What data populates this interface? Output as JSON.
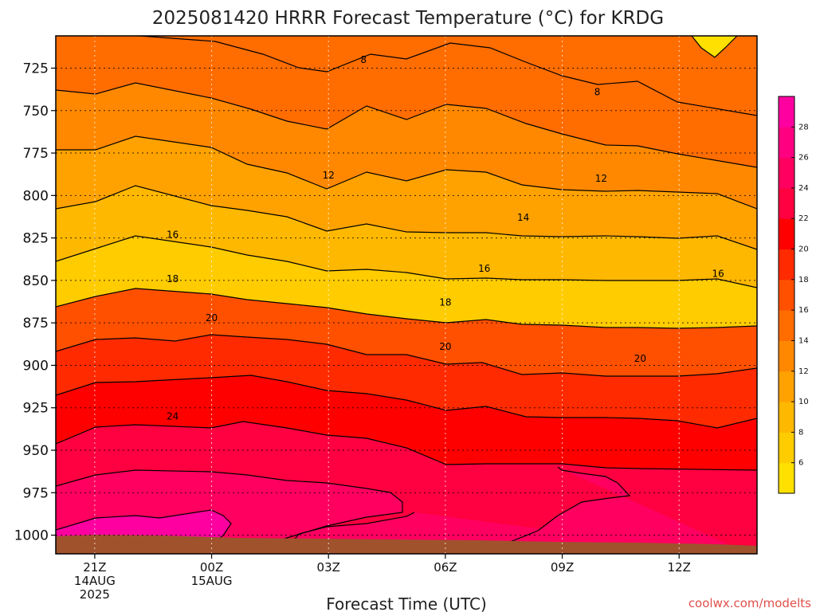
{
  "chart_data": {
    "type": "heatmap",
    "title": "2025081420 HRRR Forecast Temperature (°C) for KRDG",
    "xlabel": "Forecast Time (UTC)",
    "ylabel": "",
    "y_ticks": [
      "725",
      "750",
      "775",
      "800",
      "825",
      "850",
      "875",
      "900",
      "925",
      "950",
      "975",
      "1000"
    ],
    "y_tick_values": [
      725,
      750,
      775,
      800,
      825,
      850,
      875,
      900,
      925,
      950,
      975,
      1000
    ],
    "ylim": [
      706,
      1011
    ],
    "y_inverted": true,
    "x_ticks": [
      {
        "hour": 21,
        "line1": "21Z",
        "line2": "14AUG",
        "line3": "2025"
      },
      {
        "hour": 24,
        "line1": "00Z",
        "line2": "15AUG",
        "line3": ""
      },
      {
        "hour": 27,
        "line1": "03Z",
        "line2": "",
        "line3": ""
      },
      {
        "hour": 30,
        "line1": "06Z",
        "line2": "",
        "line3": ""
      },
      {
        "hour": 33,
        "line1": "09Z",
        "line2": "",
        "line3": ""
      },
      {
        "hour": 36,
        "line1": "12Z",
        "line2": "",
        "line3": ""
      }
    ],
    "xlim": [
      20,
      38
    ],
    "grid": true,
    "colorbar": {
      "ticks": [
        "6",
        "8",
        "10",
        "12",
        "14",
        "16",
        "18",
        "20",
        "22",
        "24",
        "26",
        "28"
      ],
      "levels": [
        4,
        6,
        8,
        10,
        12,
        14,
        16,
        18,
        20,
        22,
        24,
        26,
        28,
        30
      ],
      "colors": [
        "#ffe000",
        "#ffcc00",
        "#ffb800",
        "#ffa200",
        "#ff8800",
        "#ff6c00",
        "#ff5000",
        "#ff2a00",
        "#ff0000",
        "#ff0040",
        "#ff0060",
        "#ff0080",
        "#ff00a0"
      ]
    },
    "contour_labels": [
      {
        "text": "8",
        "hour": 27.9,
        "p": 720
      },
      {
        "text": "8",
        "hour": 33.9,
        "p": 739
      },
      {
        "text": "12",
        "hour": 27.0,
        "p": 788
      },
      {
        "text": "12",
        "hour": 34.0,
        "p": 790
      },
      {
        "text": "14",
        "hour": 32.0,
        "p": 813
      },
      {
        "text": "16",
        "hour": 23.0,
        "p": 823
      },
      {
        "text": "16",
        "hour": 31.0,
        "p": 843
      },
      {
        "text": "16",
        "hour": 37.0,
        "p": 846
      },
      {
        "text": "18",
        "hour": 23.0,
        "p": 849
      },
      {
        "text": "18",
        "hour": 30.0,
        "p": 863
      },
      {
        "text": "20",
        "hour": 24.0,
        "p": 872
      },
      {
        "text": "20",
        "hour": 30.0,
        "p": 889
      },
      {
        "text": "20",
        "hour": 35.0,
        "p": 896
      },
      {
        "text": "24",
        "hour": 23.0,
        "p": 930
      }
    ]
  },
  "watermark": "coolwx.com/modelts"
}
